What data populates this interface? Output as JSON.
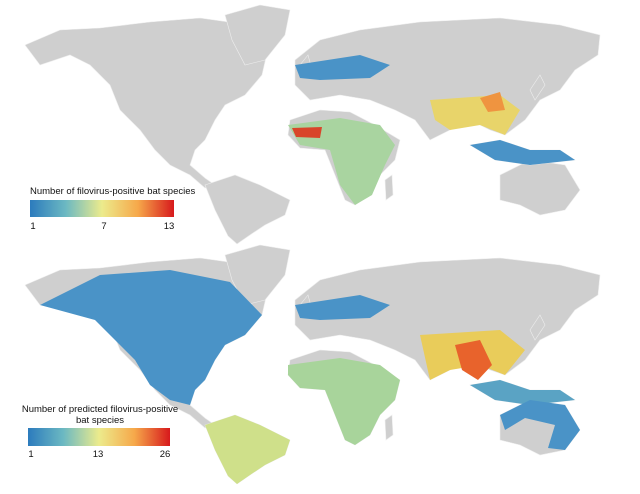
{
  "legends": [
    {
      "title": "Number of filovirus-positive bat species",
      "ticks": [
        1,
        7,
        13
      ]
    },
    {
      "title_lines": [
        "Number of predicted filovirus-positive",
        "bat species"
      ],
      "ticks": [
        1,
        13,
        26
      ]
    }
  ]
}
